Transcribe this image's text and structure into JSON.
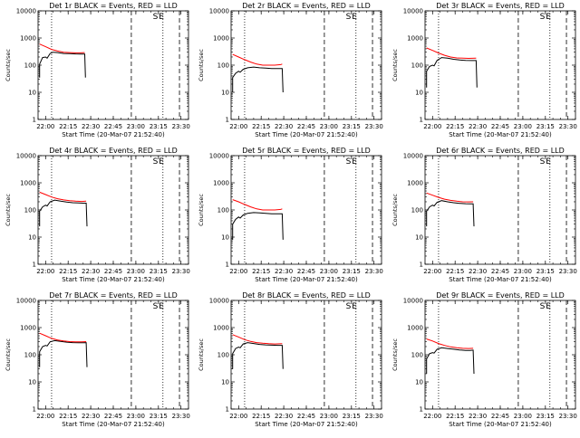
{
  "page": {
    "background": "#ffffff"
  },
  "common": {
    "ylabel": "Counts/sec",
    "xlabel": "Start Time (20-Mar-07 21:52:40)",
    "x_range_min": [
      -5,
      95
    ],
    "y_range": [
      1,
      10000
    ],
    "y_scale": "log",
    "x_tick_labels": [
      "22:00",
      "22:15",
      "22:30",
      "22:45",
      "23:00",
      "23:15",
      "23:30"
    ],
    "x_tick_minutes": [
      0,
      15,
      30,
      45,
      60,
      75,
      90
    ],
    "y_tick_labels": [
      "1",
      "10",
      "100",
      "1000",
      "10000"
    ],
    "y_tick_values": [
      1,
      10,
      100,
      1000,
      10000
    ],
    "markers": {
      "dotted_min": [
        4,
        78
      ],
      "dashed_min": [
        57,
        89
      ],
      "S_label": "S",
      "E_label": "E",
      "S_min": 73,
      "E_min": 77
    },
    "colors": {
      "events": "#000000",
      "lld": "#ff0000"
    }
  },
  "chart_data": [
    {
      "type": "line",
      "title": "Det 1r BLACK = Events, RED = LLD",
      "xlabel": "Start Time (20-Mar-07 21:52:40)",
      "ylabel": "Counts/sec",
      "ylim": [
        1,
        10000
      ],
      "yscale": "log",
      "series": [
        {
          "name": "Events",
          "color": "#000000",
          "points": [
            [
              -4,
              35
            ],
            [
              -4,
              110
            ],
            [
              -2,
              190
            ],
            [
              0,
              200
            ],
            [
              1,
              180
            ],
            [
              3,
              270
            ],
            [
              5,
              300
            ],
            [
              8,
              290
            ],
            [
              12,
              270
            ],
            [
              16,
              265
            ],
            [
              20,
              260
            ],
            [
              23,
              258
            ],
            [
              26,
              257
            ],
            [
              26.5,
              35
            ]
          ]
        },
        {
          "name": "LLD",
          "color": "#ff0000",
          "points": [
            [
              -4,
              600
            ],
            [
              0,
              480
            ],
            [
              4,
              380
            ],
            [
              8,
              330
            ],
            [
              12,
              300
            ],
            [
              16,
              290
            ],
            [
              20,
              285
            ],
            [
              23,
              285
            ],
            [
              26,
              290
            ]
          ]
        }
      ]
    },
    {
      "type": "line",
      "title": "Det 2r BLACK = Events, RED = LLD",
      "xlabel": "Start Time (20-Mar-07 21:52:40)",
      "ylabel": "Counts/sec",
      "ylim": [
        1,
        10000
      ],
      "yscale": "log",
      "series": [
        {
          "name": "Events",
          "color": "#000000",
          "points": [
            [
              -4,
              10
            ],
            [
              -4,
              35
            ],
            [
              -2,
              50
            ],
            [
              0,
              60
            ],
            [
              1,
              55
            ],
            [
              3,
              70
            ],
            [
              6,
              80
            ],
            [
              10,
              85
            ],
            [
              14,
              80
            ],
            [
              18,
              78
            ],
            [
              22,
              75
            ],
            [
              26,
              75
            ],
            [
              29,
              75
            ],
            [
              29.5,
              10
            ]
          ]
        },
        {
          "name": "LLD",
          "color": "#ff0000",
          "points": [
            [
              -4,
              250
            ],
            [
              0,
              200
            ],
            [
              4,
              160
            ],
            [
              8,
              130
            ],
            [
              12,
              110
            ],
            [
              16,
              100
            ],
            [
              20,
              100
            ],
            [
              24,
              100
            ],
            [
              28,
              105
            ],
            [
              29,
              110
            ]
          ]
        }
      ]
    },
    {
      "type": "line",
      "title": "Det 3r BLACK = Events, RED = LLD",
      "xlabel": "Start Time (20-Mar-07 21:52:40)",
      "ylabel": "Counts/sec",
      "ylim": [
        1,
        10000
      ],
      "yscale": "log",
      "series": [
        {
          "name": "Events",
          "color": "#000000",
          "points": [
            [
              -4,
              15
            ],
            [
              -4,
              60
            ],
            [
              -2,
              90
            ],
            [
              0,
              100
            ],
            [
              1,
              95
            ],
            [
              3,
              150
            ],
            [
              6,
              190
            ],
            [
              10,
              180
            ],
            [
              14,
              165
            ],
            [
              18,
              155
            ],
            [
              22,
              150
            ],
            [
              26,
              148
            ],
            [
              29,
              148
            ],
            [
              29.5,
              15
            ]
          ]
        },
        {
          "name": "LLD",
          "color": "#ff0000",
          "points": [
            [
              -4,
              430
            ],
            [
              0,
              350
            ],
            [
              4,
              280
            ],
            [
              8,
              230
            ],
            [
              12,
              200
            ],
            [
              16,
              185
            ],
            [
              20,
              180
            ],
            [
              24,
              178
            ],
            [
              29,
              180
            ]
          ]
        }
      ]
    },
    {
      "type": "line",
      "title": "Det 4r BLACK = Events, RED = LLD",
      "xlabel": "Start Time (20-Mar-07 21:52:40)",
      "ylabel": "Counts/sec",
      "ylim": [
        1,
        10000
      ],
      "yscale": "log",
      "series": [
        {
          "name": "Events",
          "color": "#000000",
          "points": [
            [
              -4,
              25
            ],
            [
              -4,
              90
            ],
            [
              -2,
              130
            ],
            [
              0,
              150
            ],
            [
              1,
              140
            ],
            [
              3,
              200
            ],
            [
              6,
              230
            ],
            [
              10,
              210
            ],
            [
              14,
              195
            ],
            [
              18,
              185
            ],
            [
              22,
              180
            ],
            [
              25,
              178
            ],
            [
              27,
              178
            ],
            [
              27.5,
              25
            ]
          ]
        },
        {
          "name": "LLD",
          "color": "#ff0000",
          "points": [
            [
              -4,
              450
            ],
            [
              0,
              370
            ],
            [
              4,
              300
            ],
            [
              8,
              260
            ],
            [
              12,
              235
            ],
            [
              16,
              220
            ],
            [
              20,
              210
            ],
            [
              24,
              205
            ],
            [
              27,
              210
            ]
          ]
        }
      ]
    },
    {
      "type": "line",
      "title": "Det 5r BLACK = Events, RED = LLD",
      "xlabel": "Start Time (20-Mar-07 21:52:40)",
      "ylabel": "Counts/sec",
      "ylim": [
        1,
        10000
      ],
      "yscale": "log",
      "series": [
        {
          "name": "Events",
          "color": "#000000",
          "points": [
            [
              -4,
              8
            ],
            [
              -4,
              30
            ],
            [
              -2,
              45
            ],
            [
              0,
              55
            ],
            [
              1,
              50
            ],
            [
              3,
              65
            ],
            [
              6,
              75
            ],
            [
              10,
              80
            ],
            [
              14,
              78
            ],
            [
              18,
              75
            ],
            [
              22,
              72
            ],
            [
              26,
              72
            ],
            [
              29,
              72
            ],
            [
              29.5,
              8
            ]
          ]
        },
        {
          "name": "LLD",
          "color": "#ff0000",
          "points": [
            [
              -4,
              240
            ],
            [
              0,
              200
            ],
            [
              4,
              160
            ],
            [
              8,
              130
            ],
            [
              12,
              110
            ],
            [
              16,
              100
            ],
            [
              20,
              100
            ],
            [
              24,
              100
            ],
            [
              28,
              105
            ],
            [
              29,
              110
            ]
          ]
        }
      ]
    },
    {
      "type": "line",
      "title": "Det 6r BLACK = Events, RED = LLD",
      "xlabel": "Start Time (20-Mar-07 21:52:40)",
      "ylabel": "Counts/sec",
      "ylim": [
        1,
        10000
      ],
      "yscale": "log",
      "series": [
        {
          "name": "Events",
          "color": "#000000",
          "points": [
            [
              -4,
              25
            ],
            [
              -4,
              90
            ],
            [
              -2,
              130
            ],
            [
              0,
              150
            ],
            [
              1,
              140
            ],
            [
              3,
              190
            ],
            [
              6,
              220
            ],
            [
              10,
              200
            ],
            [
              14,
              185
            ],
            [
              18,
              175
            ],
            [
              22,
              170
            ],
            [
              25,
              168
            ],
            [
              27,
              168
            ],
            [
              27.5,
              25
            ]
          ]
        },
        {
          "name": "LLD",
          "color": "#ff0000",
          "points": [
            [
              -4,
              420
            ],
            [
              0,
              350
            ],
            [
              4,
              290
            ],
            [
              8,
              250
            ],
            [
              12,
              225
            ],
            [
              16,
              210
            ],
            [
              20,
              200
            ],
            [
              24,
              198
            ],
            [
              27,
              200
            ]
          ]
        }
      ]
    },
    {
      "type": "line",
      "title": "Det 7r BLACK = Events, RED = LLD",
      "xlabel": "Start Time (20-Mar-07 21:52:40)",
      "ylabel": "Counts/sec",
      "ylim": [
        1,
        10000
      ],
      "yscale": "log",
      "series": [
        {
          "name": "Events",
          "color": "#000000",
          "points": [
            [
              -4,
              35
            ],
            [
              -4,
              130
            ],
            [
              -2,
              200
            ],
            [
              0,
              220
            ],
            [
              1,
              210
            ],
            [
              3,
              300
            ],
            [
              6,
              330
            ],
            [
              10,
              310
            ],
            [
              14,
              290
            ],
            [
              18,
              280
            ],
            [
              22,
              275
            ],
            [
              25,
              275
            ],
            [
              27,
              278
            ],
            [
              27.5,
              35
            ]
          ]
        },
        {
          "name": "LLD",
          "color": "#ff0000",
          "points": [
            [
              -4,
              620
            ],
            [
              0,
              500
            ],
            [
              4,
              400
            ],
            [
              8,
              350
            ],
            [
              12,
              320
            ],
            [
              16,
              305
            ],
            [
              20,
              300
            ],
            [
              24,
              300
            ],
            [
              27,
              305
            ]
          ]
        }
      ]
    },
    {
      "type": "line",
      "title": "Det 8r BLACK = Events, RED = LLD",
      "xlabel": "Start Time (20-Mar-07 21:52:40)",
      "ylabel": "Counts/sec",
      "ylim": [
        1,
        10000
      ],
      "yscale": "log",
      "series": [
        {
          "name": "Events",
          "color": "#000000",
          "points": [
            [
              -4,
              30
            ],
            [
              -4,
              110
            ],
            [
              -2,
              170
            ],
            [
              0,
              190
            ],
            [
              1,
              180
            ],
            [
              3,
              250
            ],
            [
              6,
              280
            ],
            [
              10,
              260
            ],
            [
              14,
              240
            ],
            [
              18,
              230
            ],
            [
              22,
              225
            ],
            [
              26,
              222
            ],
            [
              29,
              222
            ],
            [
              29.5,
              30
            ]
          ]
        },
        {
          "name": "LLD",
          "color": "#ff0000",
          "points": [
            [
              -4,
              550
            ],
            [
              0,
              450
            ],
            [
              4,
              360
            ],
            [
              8,
              310
            ],
            [
              12,
              280
            ],
            [
              16,
              265
            ],
            [
              20,
              255
            ],
            [
              24,
              250
            ],
            [
              29,
              255
            ]
          ]
        }
      ]
    },
    {
      "type": "line",
      "title": "Det 9r BLACK = Events, RED = LLD",
      "xlabel": "Start Time (20-Mar-07 21:52:40)",
      "ylabel": "Counts/sec",
      "ylim": [
        1,
        10000
      ],
      "yscale": "log",
      "series": [
        {
          "name": "Events",
          "color": "#000000",
          "points": [
            [
              -4,
              20
            ],
            [
              -4,
              70
            ],
            [
              -2,
              110
            ],
            [
              0,
              120
            ],
            [
              1,
              115
            ],
            [
              3,
              160
            ],
            [
              6,
              180
            ],
            [
              10,
              170
            ],
            [
              14,
              160
            ],
            [
              18,
              150
            ],
            [
              22,
              145
            ],
            [
              25,
              145
            ],
            [
              27,
              148
            ],
            [
              27.5,
              20
            ]
          ]
        },
        {
          "name": "LLD",
          "color": "#ff0000",
          "points": [
            [
              -4,
              380
            ],
            [
              0,
              320
            ],
            [
              4,
              260
            ],
            [
              8,
              220
            ],
            [
              12,
              195
            ],
            [
              16,
              180
            ],
            [
              20,
              172
            ],
            [
              24,
              170
            ],
            [
              27,
              172
            ]
          ]
        }
      ]
    }
  ]
}
